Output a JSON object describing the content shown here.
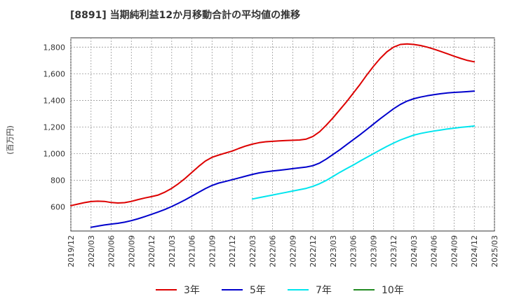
{
  "chart_data": {
    "type": "line",
    "title": "[8891]  当期純利益12か月移動合計の平均値の推移",
    "xlabel": "",
    "ylabel": "(百万円)",
    "ylim": [
      420,
      1870
    ],
    "yticks": [
      600,
      800,
      1000,
      1200,
      1400,
      1600,
      1800
    ],
    "ytick_labels": [
      "600",
      "800",
      "1,000",
      "1,200",
      "1,400",
      "1,600",
      "1,800"
    ],
    "xticks": [
      "2019/12",
      "2020/03",
      "2020/06",
      "2020/09",
      "2020/12",
      "2021/03",
      "2021/06",
      "2021/09",
      "2021/12",
      "2022/03",
      "2022/06",
      "2022/09",
      "2022/12",
      "2023/03",
      "2023/06",
      "2023/09",
      "2023/12",
      "2024/03",
      "2024/06",
      "2024/09",
      "2024/12",
      "2025/03"
    ],
    "grid": true,
    "legend_position": "bottom",
    "series": [
      {
        "name": "3年",
        "color": "#dd0000",
        "x": [
          "2019/12",
          "2020/01",
          "2020/02",
          "2020/03",
          "2020/04",
          "2020/05",
          "2020/06",
          "2020/07",
          "2020/08",
          "2020/09",
          "2020/10",
          "2020/11",
          "2020/12",
          "2021/01",
          "2021/02",
          "2021/03",
          "2021/04",
          "2021/05",
          "2021/06",
          "2021/07",
          "2021/08",
          "2021/09",
          "2021/10",
          "2021/11",
          "2021/12",
          "2022/01",
          "2022/02",
          "2022/03",
          "2022/04",
          "2022/05",
          "2022/06",
          "2022/07",
          "2022/08",
          "2022/09",
          "2022/10",
          "2022/11",
          "2022/12",
          "2023/01",
          "2023/02",
          "2023/03",
          "2023/04",
          "2023/05",
          "2023/06",
          "2023/07",
          "2023/08",
          "2023/09",
          "2023/10",
          "2023/11",
          "2023/12",
          "2024/01",
          "2024/02",
          "2024/03",
          "2024/04",
          "2024/05",
          "2024/06",
          "2024/07",
          "2024/08",
          "2024/09",
          "2024/10",
          "2024/11",
          "2024/12"
        ],
        "values": [
          610,
          622,
          633,
          641,
          644,
          642,
          634,
          630,
          633,
          642,
          656,
          668,
          678,
          690,
          712,
          740,
          775,
          815,
          860,
          905,
          945,
          973,
          990,
          1005,
          1020,
          1040,
          1058,
          1072,
          1083,
          1090,
          1093,
          1096,
          1099,
          1101,
          1103,
          1110,
          1130,
          1165,
          1215,
          1270,
          1330,
          1390,
          1455,
          1520,
          1590,
          1655,
          1715,
          1765,
          1800,
          1820,
          1824,
          1820,
          1812,
          1800,
          1785,
          1768,
          1750,
          1732,
          1715,
          1700,
          1690
        ]
      },
      {
        "name": "5年",
        "color": "#0000cc",
        "x": [
          "2020/03",
          "2020/04",
          "2020/05",
          "2020/06",
          "2020/07",
          "2020/08",
          "2020/09",
          "2020/10",
          "2020/11",
          "2020/12",
          "2021/01",
          "2021/02",
          "2021/03",
          "2021/04",
          "2021/05",
          "2021/06",
          "2021/07",
          "2021/08",
          "2021/09",
          "2021/10",
          "2021/11",
          "2021/12",
          "2022/01",
          "2022/02",
          "2022/03",
          "2022/04",
          "2022/05",
          "2022/06",
          "2022/07",
          "2022/08",
          "2022/09",
          "2022/10",
          "2022/11",
          "2022/12",
          "2023/01",
          "2023/02",
          "2023/03",
          "2023/04",
          "2023/05",
          "2023/06",
          "2023/07",
          "2023/08",
          "2023/09",
          "2023/10",
          "2023/11",
          "2023/12",
          "2024/01",
          "2024/02",
          "2024/03",
          "2024/04",
          "2024/05",
          "2024/06",
          "2024/07",
          "2024/08",
          "2024/09",
          "2024/10",
          "2024/11",
          "2024/12"
        ],
        "values": [
          448,
          457,
          465,
          472,
          478,
          486,
          498,
          512,
          528,
          545,
          563,
          582,
          604,
          628,
          654,
          682,
          710,
          738,
          762,
          780,
          792,
          805,
          818,
          832,
          845,
          856,
          864,
          870,
          876,
          882,
          888,
          894,
          900,
          910,
          930,
          960,
          995,
          1030,
          1068,
          1105,
          1143,
          1182,
          1222,
          1262,
          1300,
          1338,
          1370,
          1395,
          1413,
          1425,
          1435,
          1443,
          1450,
          1456,
          1460,
          1463,
          1466,
          1470
        ]
      },
      {
        "name": "7年",
        "color": "#00e5ee",
        "x": [
          "2022/03",
          "2022/04",
          "2022/05",
          "2022/06",
          "2022/07",
          "2022/08",
          "2022/09",
          "2022/10",
          "2022/11",
          "2022/12",
          "2023/01",
          "2023/02",
          "2023/03",
          "2023/04",
          "2023/05",
          "2023/06",
          "2023/07",
          "2023/08",
          "2023/09",
          "2023/10",
          "2023/11",
          "2023/12",
          "2024/01",
          "2024/02",
          "2024/03",
          "2024/04",
          "2024/05",
          "2024/06",
          "2024/07",
          "2024/08",
          "2024/09",
          "2024/10",
          "2024/11",
          "2024/12"
        ],
        "values": [
          660,
          670,
          680,
          690,
          700,
          710,
          720,
          730,
          740,
          755,
          775,
          800,
          830,
          860,
          888,
          915,
          945,
          972,
          1000,
          1028,
          1055,
          1080,
          1103,
          1122,
          1140,
          1152,
          1162,
          1170,
          1178,
          1186,
          1192,
          1198,
          1203,
          1208
        ]
      },
      {
        "name": "10年",
        "color": "#228b22",
        "x": [],
        "values": []
      }
    ]
  }
}
